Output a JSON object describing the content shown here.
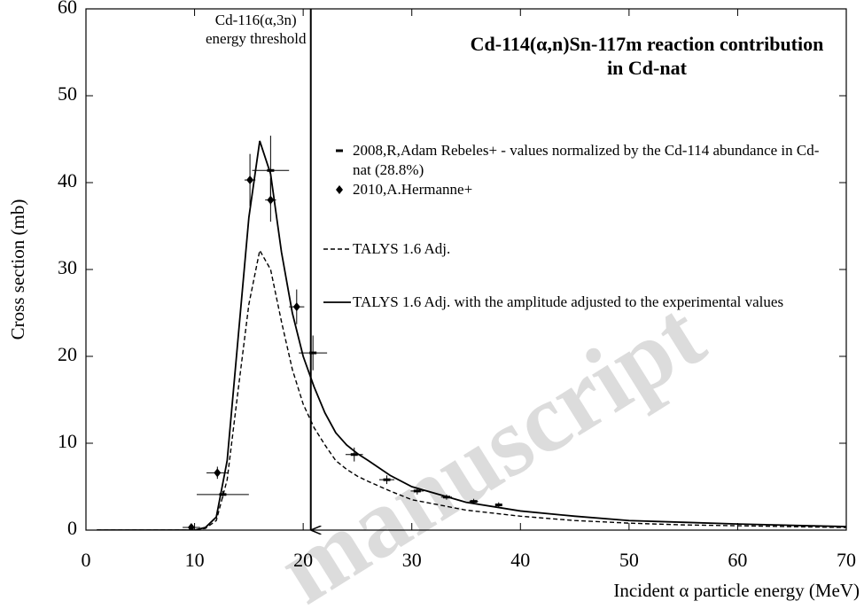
{
  "chart_data": {
    "type": "line",
    "title": "Cd-114(α,n)Sn-117m reaction contribution in Cd-nat",
    "x_label": "Incident α particle energy (MeV)",
    "y_label": "Cross section (mb)",
    "xlim": [
      0,
      70
    ],
    "ylim": [
      0,
      60
    ],
    "xticks": [
      0,
      10,
      20,
      30,
      40,
      50,
      60,
      70
    ],
    "yticks": [
      0,
      10,
      20,
      30,
      40,
      50,
      60
    ],
    "threshold": {
      "x": 20.7,
      "label_lines": [
        "Cd-116(α,3n)",
        "energy threshold"
      ]
    },
    "watermark": "manuscript",
    "series": [
      {
        "name": "2008,R,Adam Rebeles+ - values normalized by the Cd-114 abundance in Cd-nat (28.8%)",
        "type": "scatter",
        "marker": "dash",
        "color": "#000000",
        "x": [
          12.6,
          17.0,
          20.9,
          24.7,
          27.7,
          30.5,
          33.2,
          35.7,
          38.0
        ],
        "values": [
          4.1,
          41.4,
          20.4,
          8.7,
          5.8,
          4.5,
          3.8,
          3.3,
          2.9
        ],
        "xerr": [
          2.4,
          1.7,
          1.3,
          0.8,
          0.7,
          0.6,
          0.5,
          0.4,
          0.3
        ],
        "yerr": [
          0.4,
          4.0,
          2.0,
          0.8,
          0.5,
          0.4,
          0.3,
          0.3,
          0.3
        ]
      },
      {
        "name": "2010,A.Hermanne+",
        "type": "scatter",
        "marker": "diamond",
        "color": "#000000",
        "x": [
          9.7,
          12.1,
          15.1,
          17.0,
          19.4
        ],
        "values": [
          0.3,
          6.6,
          40.3,
          38.0,
          25.7
        ],
        "xerr": [
          0.8,
          1.0,
          0.5,
          0.5,
          0.7
        ],
        "yerr": [
          0.2,
          0.7,
          3.0,
          2.5,
          2.0
        ]
      },
      {
        "name": "TALYS 1.6 Adj.",
        "type": "line",
        "dash": true,
        "color": "#000000",
        "x": [
          1,
          10,
          11,
          12,
          13,
          14,
          15,
          16,
          17,
          18,
          19,
          20,
          21,
          22,
          23,
          24,
          25,
          26,
          28,
          30,
          35,
          40,
          45,
          50,
          55,
          60,
          70
        ],
        "values": [
          0,
          0,
          0.2,
          1.1,
          5.8,
          16,
          26,
          32.2,
          30,
          24,
          18.5,
          14.5,
          11.8,
          9.8,
          8,
          7,
          6.2,
          5.6,
          4.5,
          3.5,
          2.3,
          1.6,
          1.1,
          0.8,
          0.6,
          0.5,
          0.3
        ]
      },
      {
        "name": "TALYS 1.6 Adj. with the amplitude adjusted to the experimental values",
        "type": "line",
        "dash": false,
        "color": "#000000",
        "x": [
          1,
          10,
          11,
          12,
          13,
          14,
          15,
          16,
          17,
          18,
          19,
          20,
          21,
          22,
          23,
          24,
          25,
          26,
          28,
          30,
          35,
          40,
          45,
          50,
          55,
          60,
          70
        ],
        "values": [
          0,
          0,
          0.3,
          1.5,
          8,
          22,
          36,
          44.8,
          41,
          32,
          25,
          20,
          16.5,
          13.5,
          11.2,
          9.8,
          8.8,
          8,
          6.3,
          5,
          3.2,
          2.2,
          1.6,
          1.1,
          0.9,
          0.7,
          0.4
        ]
      }
    ]
  }
}
